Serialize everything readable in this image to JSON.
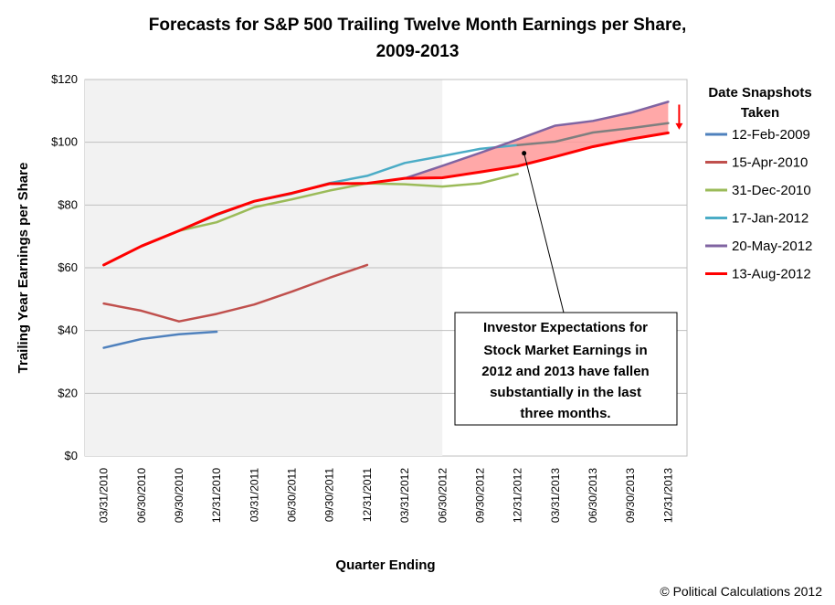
{
  "chart_data": {
    "type": "line",
    "title_lines": [
      "Forecasts  for S&P 500 Trailing Twelve Month Earnings per Share,",
      "2009-2013"
    ],
    "xlabel": "Quarter Ending",
    "ylabel": "Trailing Year Earnings per Share",
    "y_ticks": [
      "$0",
      "$20",
      "$40",
      "$60",
      "$80",
      "$100",
      "$120"
    ],
    "ylim": [
      0,
      120
    ],
    "categories": [
      "03/31/2010",
      "06/30/2010",
      "09/30/2010",
      "12/31/2010",
      "03/31/2011",
      "06/30/2011",
      "09/30/2011",
      "12/31/2011",
      "03/31/2012",
      "06/30/2012",
      "09/30/2012",
      "12/31/2012",
      "03/31/2013",
      "06/30/2013",
      "09/30/2013",
      "12/31/2013"
    ],
    "shaded_region": {
      "from_category": "03/31/2010",
      "to_category": "06/30/2012",
      "color": "#f2f2f2"
    },
    "gridlines": "horizontal",
    "legend": {
      "title_lines": [
        "Date Snapshots",
        "Taken"
      ],
      "placement": "right"
    },
    "series": [
      {
        "name": "12-Feb-2009",
        "color": "#4f81bd",
        "values": [
          34.5,
          37.3,
          38.8,
          39.6,
          null,
          null,
          null,
          null,
          null,
          null,
          null,
          null,
          null,
          null,
          null,
          null
        ]
      },
      {
        "name": "15-Apr-2010",
        "color": "#c0504d",
        "values": [
          48.6,
          46.3,
          42.9,
          45.3,
          48.3,
          52.4,
          56.8,
          60.9,
          null,
          null,
          null,
          null,
          null,
          null,
          null,
          null
        ]
      },
      {
        "name": "31-Dec-2010",
        "color": "#9bbb59",
        "values": [
          60.9,
          66.9,
          71.8,
          74.5,
          79.3,
          81.8,
          84.6,
          86.9,
          86.6,
          85.9,
          86.9,
          89.9,
          null,
          null,
          null,
          null
        ]
      },
      {
        "name": "17-Jan-2012",
        "color": "#4bacc6",
        "values": [
          60.9,
          66.9,
          71.8,
          76.8,
          81.2,
          83.6,
          87.0,
          89.3,
          93.4,
          95.6,
          97.9,
          99.1,
          null,
          null,
          null,
          null
        ]
      },
      {
        "name": "20-May-2012",
        "color": "#8064a2",
        "values": [
          null,
          null,
          null,
          null,
          null,
          null,
          null,
          null,
          88.5,
          92.5,
          96.6,
          100.9,
          105.3,
          106.8,
          109.4,
          112.9
        ]
      },
      {
        "name": "13-Aug-2012",
        "color": "#ff0000",
        "values": [
          60.9,
          66.9,
          71.8,
          77.0,
          81.2,
          83.8,
          86.8,
          86.9,
          88.5,
          88.7,
          90.5,
          92.4,
          95.4,
          98.6,
          101.0,
          103.0
        ]
      },
      {
        "name": "",
        "color": "#7f7f7f",
        "values": [
          null,
          null,
          null,
          null,
          null,
          null,
          null,
          null,
          null,
          null,
          null,
          99.1,
          100.2,
          103.1,
          104.5,
          106.1
        ]
      }
    ],
    "fill_between": {
      "upper_series": "20-May-2012",
      "lower_series": "13-Aug-2012",
      "from_category": "03/31/2012",
      "color": "#ff9999"
    },
    "annotation": {
      "lines": [
        "Investor Expectations for",
        "Stock Market Earnings in",
        "2012 and 2013 have fallen",
        "substantially in the last",
        "three months."
      ],
      "points_to_category": "12/31/2012",
      "points_to_value": 96.5
    },
    "arrow": {
      "category": "12/31/2013",
      "from_value": 112,
      "to_value": 104,
      "color": "#ff0000"
    },
    "credit": "© Political Calculations 2012"
  }
}
